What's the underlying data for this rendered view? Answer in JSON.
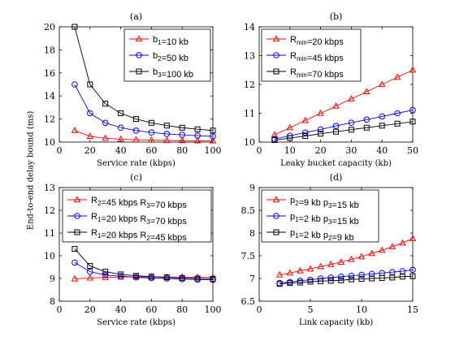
{
  "figure": {
    "shared_ylabel": "End-to-end delay bound (ms)"
  },
  "chart_data": [
    {
      "type": "line",
      "title": "(a)",
      "xlabel": "Service rate (kbps)",
      "ylabel": "End-to-end delay bound (ms)",
      "xlim": [
        0,
        100
      ],
      "ylim": [
        10,
        20
      ],
      "xticks": [
        0,
        20,
        40,
        60,
        80,
        100
      ],
      "yticks": [
        10,
        12,
        14,
        16,
        18,
        20
      ],
      "legend_position": "top-right",
      "x": [
        10,
        20,
        30,
        40,
        50,
        60,
        70,
        80,
        90,
        100
      ],
      "series": [
        {
          "name": "b1=10 kb",
          "legend_parts": [
            [
              "b",
              ""
            ],
            [
              "1",
              "sub"
            ],
            [
              "=10 kb",
              ""
            ]
          ],
          "color": "#ff0000",
          "marker": "triangle",
          "values": [
            11.0,
            10.5,
            10.33,
            10.25,
            10.2,
            10.17,
            10.14,
            10.13,
            10.11,
            10.1
          ]
        },
        {
          "name": "b2=50 kb",
          "legend_parts": [
            [
              "b",
              ""
            ],
            [
              "2",
              "sub"
            ],
            [
              "=50 kb",
              ""
            ]
          ],
          "color": "#0000ff",
          "marker": "circle",
          "values": [
            15.0,
            12.5,
            11.67,
            11.25,
            11.0,
            10.83,
            10.71,
            10.63,
            10.56,
            10.5
          ]
        },
        {
          "name": "b3=100 kb",
          "legend_parts": [
            [
              "b",
              ""
            ],
            [
              "3",
              "sub"
            ],
            [
              "=100 kb",
              ""
            ]
          ],
          "color": "#000000",
          "marker": "square",
          "values": [
            20.0,
            15.0,
            13.33,
            12.5,
            12.0,
            11.67,
            11.43,
            11.25,
            11.11,
            11.0
          ]
        }
      ]
    },
    {
      "type": "line",
      "title": "(b)",
      "xlabel": "Leaky bucket capacity (kb)",
      "ylabel": "",
      "xlim": [
        0,
        50
      ],
      "ylim": [
        10,
        14
      ],
      "xticks": [
        0,
        10,
        20,
        30,
        40,
        50
      ],
      "yticks": [
        10,
        11,
        12,
        13,
        14
      ],
      "legend_position": "top-left",
      "x": [
        5,
        10,
        15,
        20,
        25,
        30,
        35,
        40,
        45,
        50
      ],
      "series": [
        {
          "name": "Rmin=20 kbps",
          "legend_parts": [
            [
              "R",
              ""
            ],
            [
              "min",
              "sub"
            ],
            [
              "=20 kbps",
              ""
            ]
          ],
          "color": "#ff0000",
          "marker": "triangle",
          "values": [
            10.25,
            10.5,
            10.75,
            11.0,
            11.25,
            11.5,
            11.75,
            12.0,
            12.25,
            12.5
          ]
        },
        {
          "name": "Rmin=45 kbps",
          "legend_parts": [
            [
              "R",
              ""
            ],
            [
              "min",
              "sub"
            ],
            [
              "=45 kbps",
              ""
            ]
          ],
          "color": "#0000ff",
          "marker": "circle",
          "values": [
            10.11,
            10.22,
            10.33,
            10.44,
            10.56,
            10.67,
            10.78,
            10.89,
            11.0,
            11.11
          ]
        },
        {
          "name": "Rmin=70 kbps",
          "legend_parts": [
            [
              "R",
              ""
            ],
            [
              "min",
              "sub"
            ],
            [
              "=70 kbps",
              ""
            ]
          ],
          "color": "#000000",
          "marker": "square",
          "values": [
            10.07,
            10.14,
            10.21,
            10.29,
            10.36,
            10.43,
            10.5,
            10.57,
            10.64,
            10.71
          ]
        }
      ]
    },
    {
      "type": "line",
      "title": "(c)",
      "xlabel": "Service rate (kbps)",
      "ylabel": "",
      "xlim": [
        0,
        100
      ],
      "ylim": [
        8,
        13
      ],
      "xticks": [
        0,
        20,
        40,
        60,
        80,
        100
      ],
      "yticks": [
        8,
        9,
        10,
        11,
        12,
        13
      ],
      "legend_position": "top-right",
      "x": [
        10,
        20,
        30,
        40,
        50,
        60,
        70,
        80,
        90,
        100
      ],
      "series": [
        {
          "name": "R2=45 kbps R3=70 kbps",
          "legend_parts": [
            [
              "R",
              ""
            ],
            [
              "2",
              "sub"
            ],
            [
              "=45 kbps  R",
              ""
            ],
            [
              "3",
              "sub"
            ],
            [
              "=70 kbps",
              ""
            ]
          ],
          "color": "#ff0000",
          "marker": "triangle",
          "values": [
            8.98,
            9.02,
            9.05,
            9.06,
            9.07,
            9.07,
            9.06,
            9.06,
            9.05,
            9.05
          ]
        },
        {
          "name": "R1=20 kbps R3=70 kbps",
          "legend_parts": [
            [
              "R",
              ""
            ],
            [
              "1",
              "sub"
            ],
            [
              "=20 kbps  R",
              ""
            ],
            [
              "3",
              "sub"
            ],
            [
              "=70 kbps",
              ""
            ]
          ],
          "color": "#0000ff",
          "marker": "circle",
          "values": [
            9.7,
            9.3,
            9.15,
            9.1,
            9.05,
            9.02,
            9.0,
            8.97,
            8.95,
            8.94
          ]
        },
        {
          "name": "R1=20 kbps R2=45 kbps",
          "legend_parts": [
            [
              "R",
              ""
            ],
            [
              "1",
              "sub"
            ],
            [
              "=20 kbps  R",
              ""
            ],
            [
              "2",
              "sub"
            ],
            [
              "=45 kbps",
              ""
            ]
          ],
          "color": "#000000",
          "marker": "square",
          "values": [
            10.3,
            9.55,
            9.3,
            9.18,
            9.12,
            9.08,
            9.05,
            9.02,
            9.0,
            8.98
          ]
        }
      ]
    },
    {
      "type": "line",
      "title": "(d)",
      "xlabel": "Link capacity (kb)",
      "ylabel": "",
      "xlim": [
        0,
        15
      ],
      "ylim": [
        6.5,
        9
      ],
      "xticks": [
        0,
        5,
        10,
        15
      ],
      "yticks": [
        6.5,
        7,
        7.5,
        8,
        8.5,
        9
      ],
      "legend_position": "top-left",
      "x": [
        2,
        3,
        4,
        5,
        6,
        7,
        8,
        9,
        10,
        11,
        12,
        13,
        14,
        15
      ],
      "series": [
        {
          "name": "p2=9 kb p3=15 kb",
          "legend_parts": [
            [
              "p",
              ""
            ],
            [
              "2",
              "sub"
            ],
            [
              "=9 kb  p",
              ""
            ],
            [
              "3",
              "sub"
            ],
            [
              "=15 kb",
              ""
            ]
          ],
          "color": "#ff0000",
          "marker": "triangle",
          "values": [
            7.08,
            7.12,
            7.17,
            7.21,
            7.26,
            7.31,
            7.36,
            7.42,
            7.48,
            7.55,
            7.62,
            7.7,
            7.78,
            7.88
          ]
        },
        {
          "name": "p1=2 kb p3=15 kb",
          "legend_parts": [
            [
              "p",
              ""
            ],
            [
              "1",
              "sub"
            ],
            [
              "=2 kb  p",
              ""
            ],
            [
              "3",
              "sub"
            ],
            [
              "=15 kb",
              ""
            ]
          ],
          "color": "#0000ff",
          "marker": "circle",
          "values": [
            6.9,
            6.92,
            6.95,
            6.97,
            7.0,
            7.02,
            7.04,
            7.06,
            7.08,
            7.1,
            7.12,
            7.14,
            7.16,
            7.19
          ]
        },
        {
          "name": "p1=2 kb p2=9 kb",
          "legend_parts": [
            [
              "p",
              ""
            ],
            [
              "1",
              "sub"
            ],
            [
              "=2 kb  p",
              ""
            ],
            [
              "2",
              "sub"
            ],
            [
              "=9 kb",
              ""
            ]
          ],
          "color": "#000000",
          "marker": "square",
          "values": [
            6.88,
            6.9,
            6.91,
            6.93,
            6.94,
            6.95,
            6.96,
            6.98,
            6.99,
            7.0,
            7.01,
            7.02,
            7.04,
            7.05
          ]
        }
      ]
    }
  ]
}
